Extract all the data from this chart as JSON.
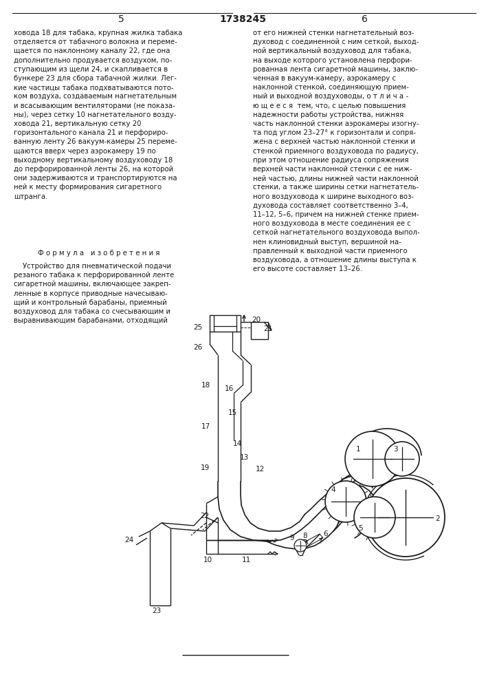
{
  "bg_color": "#ffffff",
  "lc": "#1a1a1a",
  "tc": "#1a1a1a",
  "page_left": "5",
  "page_center": "1738245",
  "page_right": "6",
  "text_left": "ховода 18 для табака, крупная жилка табака\nотделяется от табачного волокна и переме-\nщается по наклонному каналу 22, где она\nдополнительно продувается воздухом, по-\nступающим из щели 24, и скапливается в\nбункере 23 для сбора табачной жилки. Лег-\nкие частицы табака подхватываются пото-\nком воздуха, создаваемым нагнетательным\nи всасывающим вентиляторами (не показа-\nны), через сетку 10 нагнетательного возду-\nховода 21, вертикальную сетку 20\nгоризонтального канала 21 и перфориро-\nванную ленту 26 вакуум-камеры 25 переме-\nщаются вверх через аэрокамеру 19 по\nвыходному вертикальному воздуховоду 18\nдо перфорированной ленты 26, на которой\nони задерживаются и транспортируются на\nней к месту формирования сигаретного\nштранга.",
  "formula_header": "Ф о р м у л а   и з о б р е т е н и я",
  "formula_body": "    Устройство для пневматической подачи\nрезаного табака к перфорированной ленте\nсигаретной машины, включающее закреп-\nленные в корпусе приводные начесываю-\nщий и контрольный барабаны, приемный\nвоздуховод для табака со счесывающим и\nвыравнивающим барабанами, отходящий",
  "text_right": "от его нижней стенки нагнетательный воз-\nдуховод с соединенной с ним сеткой, выход-\nной вертикальный воздуховод для табака,\nна выходе которого установлена перфори-\nрованная лента сигаретной машины, заклю-\nченная в вакуум-камеру, аэрокамеру с\nнаклонной стенкой, соединяющую прием-\nный и выходной воздуховоды, о т л и ч а -\nю щ е е с я  тем, что, с целью повышения\nнадежности работы устройства, нижняя\nчасть наклонной стенки аэрокамеры изогну-\nта под углом 23–27° к горизонтали и сопря-\nжена с верхней частью наклонной стенки и\nстенкой приемного воздуховода по радиусу,\nпри этом отношение радиуса сопряжения\nверхней части наклонной стенки с ее ниж-\nней частью, длины нижней части наклонной\nстенки, а также ширины сетки нагнетатель-\nного воздуховода к ширине выходного воз-\nдуховода составляет соответственно 3–4,\n11–12, 5–6, причем на нижней стенке прием-\nного воздуховода в месте соединения ее с\nсеткой нагнетательного воздуховода выпол-\nнен клиновидный выступ, вершиной на-\nправленный к выходной части приемного\nвоздуховода, а отношение длины выступа к\nего высоте составляет 13–26."
}
